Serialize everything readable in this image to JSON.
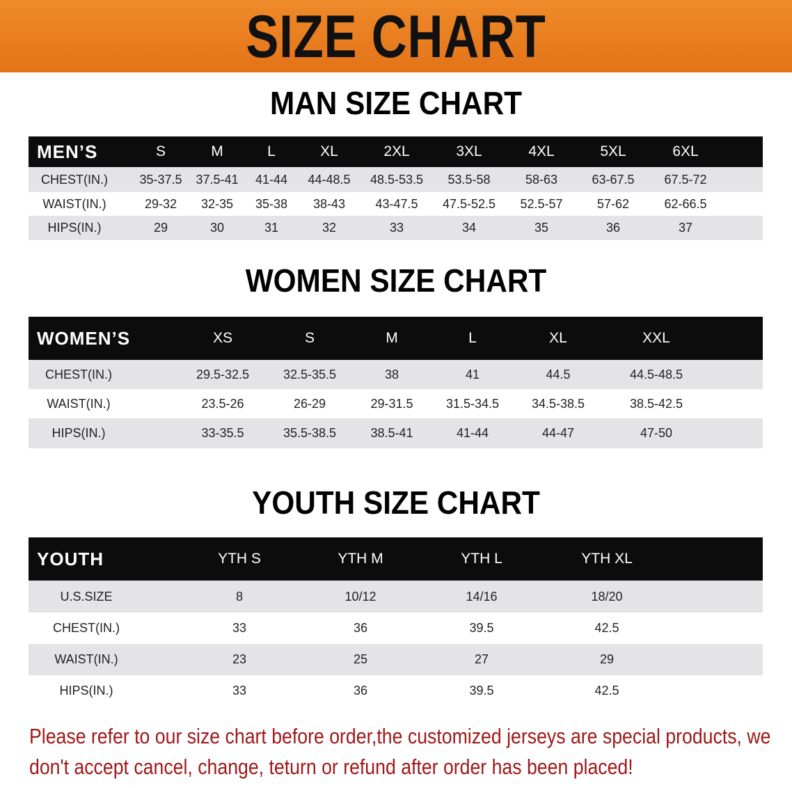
{
  "banner_title": "SIZE CHART",
  "men": {
    "title": "MAN SIZE CHART",
    "header": [
      "MEN’S",
      "S",
      "M",
      "L",
      "XL",
      "2XL",
      "3XL",
      "4XL",
      "5XL",
      "6XL"
    ],
    "rows": [
      [
        "CHEST(IN.)",
        "35-37.5",
        "37.5-41",
        "41-44",
        "44-48.5",
        "48.5-53.5",
        "53.5-58",
        "58-63",
        "63-67.5",
        "67.5-72"
      ],
      [
        "WAIST(IN.)",
        "29-32",
        "32-35",
        "35-38",
        "38-43",
        "43-47.5",
        "47.5-52.5",
        "52.5-57",
        "57-62",
        "62-66.5"
      ],
      [
        "HIPS(IN.)",
        "29",
        "30",
        "31",
        "32",
        "33",
        "34",
        "35",
        "36",
        "37"
      ]
    ]
  },
  "women": {
    "title": "WOMEN SIZE CHART",
    "header": [
      "WOMEN’S",
      "XS",
      "S",
      "M",
      "L",
      "XL",
      "XXL"
    ],
    "rows": [
      [
        "CHEST(IN.)",
        "29.5-32.5",
        "32.5-35.5",
        "38",
        "41",
        "44.5",
        "44.5-48.5"
      ],
      [
        "WAIST(IN.)",
        "23.5-26",
        "26-29",
        "29-31.5",
        "31.5-34.5",
        "34.5-38.5",
        "38.5-42.5"
      ],
      [
        "HIPS(IN.)",
        "33-35.5",
        "35.5-38.5",
        "38.5-41",
        "41-44",
        "44-47",
        "47-50"
      ]
    ]
  },
  "youth": {
    "title": "YOUTH SIZE CHART",
    "header": [
      "YOUTH",
      "YTH S",
      "YTH M",
      "YTH L",
      "YTH XL"
    ],
    "rows": [
      [
        "U.S.SIZE",
        "8",
        "10/12",
        "14/16",
        "18/20"
      ],
      [
        "CHEST(IN.)",
        "33",
        "36",
        "39.5",
        "42.5"
      ],
      [
        "WAIST(IN.)",
        "23",
        "25",
        "27",
        "29"
      ],
      [
        "HIPS(IN.)",
        "33",
        "36",
        "39.5",
        "42.5"
      ]
    ]
  },
  "note": "Please refer to our size chart before order,the customized jerseys are special products, we don't accept cancel, change, teturn or refund after order has been placed!",
  "colors": {
    "banner": "#e8781a",
    "header_row": "#0c0c0c",
    "stripe": "#e4e4e6",
    "note": "#a01818"
  }
}
